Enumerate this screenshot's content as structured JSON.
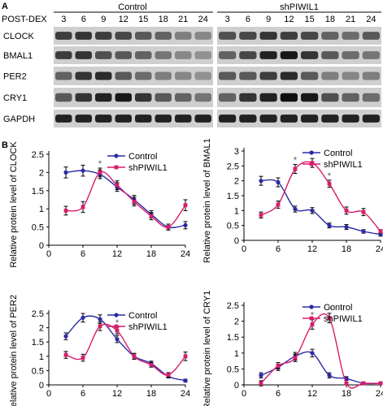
{
  "figure": {
    "panel_a_letter": "A",
    "panel_b_letter": "B",
    "post_dex_label": "POST-DEX",
    "group_control": "Control",
    "group_sh": "shPIWIL1",
    "timepoints": [
      "3",
      "6",
      "9",
      "12",
      "15",
      "18",
      "21",
      "24"
    ],
    "blot_rows": [
      "CLOCK",
      "BMAL1",
      "PER2",
      "CRY1",
      "GAPDH"
    ],
    "colors": {
      "control": "#2a2aa6",
      "sh": "#d81b6a",
      "blot_bg": "#cfcfcf"
    }
  },
  "blots": {
    "CLOCK": {
      "control": [
        0.75,
        0.8,
        0.75,
        0.7,
        0.6,
        0.55,
        0.4,
        0.35
      ],
      "sh": [
        0.65,
        0.7,
        0.8,
        0.75,
        0.7,
        0.55,
        0.5,
        0.6
      ]
    },
    "BMAL1": {
      "control": [
        0.75,
        0.8,
        0.65,
        0.6,
        0.55,
        0.45,
        0.35,
        0.3
      ],
      "sh": [
        0.55,
        0.7,
        0.9,
        0.95,
        0.8,
        0.6,
        0.5,
        0.45
      ]
    },
    "PER2": {
      "control": [
        0.55,
        0.8,
        0.85,
        0.6,
        0.5,
        0.4,
        0.35,
        0.3
      ],
      "sh": [
        0.6,
        0.6,
        0.75,
        0.85,
        0.6,
        0.4,
        0.35,
        0.4
      ]
    },
    "CRY1": {
      "control": [
        0.6,
        0.8,
        0.9,
        0.95,
        0.8,
        0.6,
        0.55,
        0.45
      ],
      "sh": [
        0.55,
        0.8,
        0.9,
        1.0,
        0.95,
        0.65,
        0.55,
        0.5
      ]
    },
    "GAPDH": {
      "control": [
        0.9,
        0.9,
        0.9,
        0.9,
        0.9,
        0.9,
        0.9,
        0.9
      ],
      "sh": [
        0.9,
        0.9,
        0.9,
        0.9,
        0.9,
        0.9,
        0.9,
        0.9
      ]
    }
  },
  "chart_data": [
    {
      "type": "line",
      "ylabel": "Relative protein level of CLOCK",
      "x": [
        3,
        6,
        9,
        12,
        15,
        18,
        21,
        24
      ],
      "xticks": [
        0,
        6,
        12,
        18,
        24
      ],
      "yticks": [
        0,
        0.5,
        1,
        1.5,
        2,
        2.5
      ],
      "xlim": [
        0,
        24
      ],
      "ylim": [
        0,
        2.5
      ],
      "legend": "top-right",
      "star_x": [
        9
      ],
      "series": [
        {
          "name": "Control",
          "values": [
            2.0,
            2.05,
            1.95,
            1.6,
            1.25,
            0.85,
            0.5,
            0.55
          ],
          "err": [
            0.15,
            0.15,
            0.12,
            0.12,
            0.12,
            0.1,
            0.08,
            0.1
          ]
        },
        {
          "name": "shPIWIL1",
          "values": [
            0.95,
            1.05,
            2.0,
            1.65,
            1.2,
            0.8,
            0.5,
            1.1
          ],
          "err": [
            0.12,
            0.15,
            0.12,
            0.12,
            0.12,
            0.1,
            0.08,
            0.15
          ]
        }
      ]
    },
    {
      "type": "line",
      "ylabel": "Relative protein level of BMAL1",
      "x": [
        3,
        6,
        9,
        12,
        15,
        18,
        21,
        24
      ],
      "xticks": [
        0,
        6,
        12,
        18,
        24
      ],
      "yticks": [
        0,
        0.5,
        1,
        1.5,
        2,
        2.5,
        3
      ],
      "xlim": [
        0,
        24
      ],
      "ylim": [
        0,
        3
      ],
      "legend": "top-right",
      "star_x": [
        9,
        12,
        15
      ],
      "series": [
        {
          "name": "Control",
          "values": [
            2.0,
            1.95,
            1.05,
            1.0,
            0.5,
            0.45,
            0.3,
            0.2
          ],
          "err": [
            0.15,
            0.15,
            0.1,
            0.1,
            0.08,
            0.08,
            0.06,
            0.06
          ]
        },
        {
          "name": "shPIWIL1",
          "values": [
            0.85,
            1.2,
            2.4,
            2.6,
            1.9,
            1.0,
            0.95,
            0.3
          ],
          "err": [
            0.1,
            0.12,
            0.15,
            0.15,
            0.12,
            0.12,
            0.12,
            0.06
          ]
        }
      ]
    },
    {
      "type": "line",
      "ylabel": "Relative protein level of PER2",
      "x": [
        3,
        6,
        9,
        12,
        15,
        18,
        21,
        24
      ],
      "xticks": [
        0,
        6,
        12,
        18,
        24
      ],
      "yticks": [
        0,
        0.5,
        1,
        1.5,
        2,
        2.5
      ],
      "xlim": [
        0,
        24
      ],
      "ylim": [
        0,
        2.5
      ],
      "legend": "top-right",
      "star_x": [
        12
      ],
      "series": [
        {
          "name": "Control",
          "values": [
            1.7,
            2.35,
            2.3,
            1.6,
            1.0,
            0.75,
            0.3,
            0.15
          ],
          "err": [
            0.12,
            0.15,
            0.15,
            0.12,
            0.1,
            0.08,
            0.06,
            0.05
          ]
        },
        {
          "name": "shPIWIL1",
          "values": [
            1.05,
            0.95,
            2.05,
            1.9,
            1.0,
            0.7,
            0.35,
            1.0
          ],
          "err": [
            0.12,
            0.12,
            0.15,
            0.12,
            0.1,
            0.08,
            0.08,
            0.15
          ]
        }
      ]
    },
    {
      "type": "line",
      "ylabel": "Relative protein level of CRY1",
      "x": [
        3,
        6,
        9,
        12,
        15,
        18,
        21,
        24
      ],
      "xticks": [
        0,
        6,
        12,
        18,
        24
      ],
      "yticks": [
        0,
        0.5,
        1,
        1.5,
        2,
        2.5
      ],
      "xlim": [
        0,
        24
      ],
      "ylim": [
        0,
        2.5
      ],
      "legend": "top-right",
      "star_x": [
        12,
        15
      ],
      "series": [
        {
          "name": "Control",
          "values": [
            0.3,
            0.55,
            0.9,
            1.0,
            0.3,
            0.2,
            0.05,
            0.05
          ],
          "err": [
            0.08,
            0.1,
            0.12,
            0.12,
            0.08,
            0.06,
            0.04,
            0.04
          ]
        },
        {
          "name": "shPIWIL1",
          "values": [
            0.05,
            0.6,
            0.85,
            1.9,
            2.1,
            0.05,
            0.05,
            0.05
          ],
          "err": [
            0.08,
            0.1,
            0.12,
            0.15,
            0.15,
            0.04,
            0.04,
            0.04
          ]
        }
      ]
    }
  ]
}
